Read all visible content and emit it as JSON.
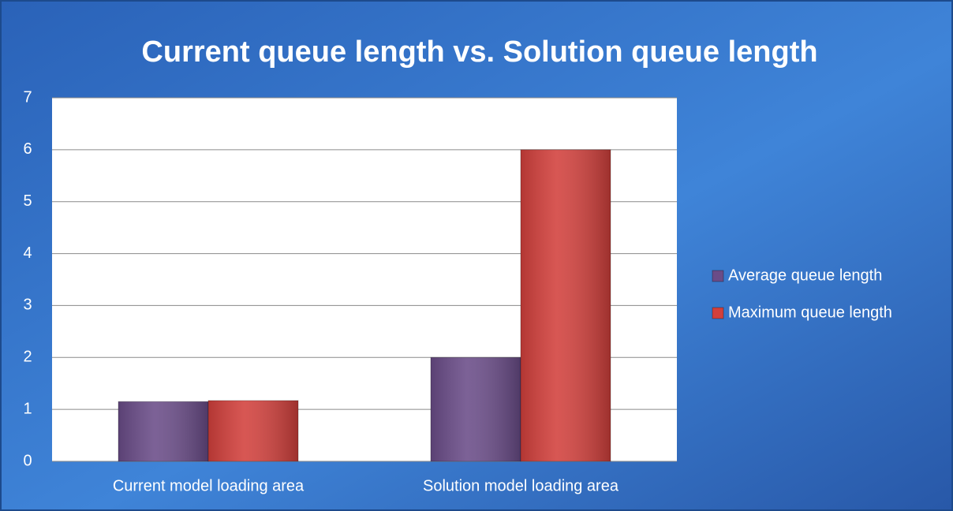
{
  "chart_data": {
    "type": "bar",
    "title": "Current queue length vs. Solution queue length",
    "categories": [
      "Current model loading area",
      "Solution model loading area"
    ],
    "series": [
      {
        "name": "Average queue length",
        "color": "#6a4c88",
        "values": [
          1.15,
          2
        ]
      },
      {
        "name": "Maximum queue length",
        "color": "#d2403c",
        "values": [
          1.17,
          6
        ]
      }
    ],
    "ylim": [
      0,
      7
    ],
    "yticks": [
      0,
      1,
      2,
      3,
      4,
      5,
      6,
      7
    ],
    "grid": true,
    "legend": "right"
  }
}
